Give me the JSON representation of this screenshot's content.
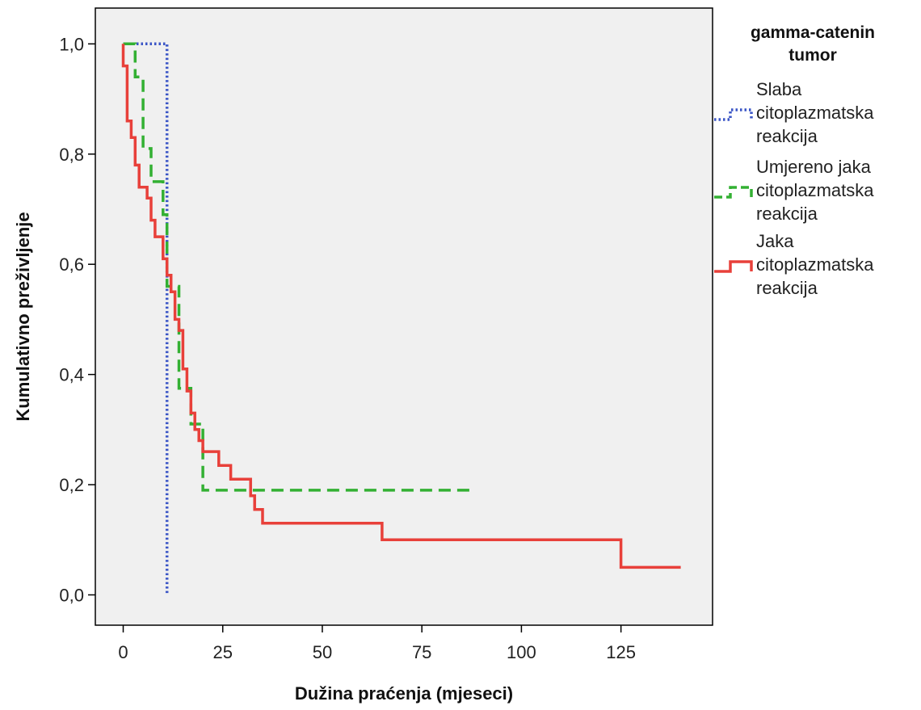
{
  "chart_data": {
    "type": "line",
    "step": true,
    "xlabel": "Dužina praćenja (mjeseci)",
    "ylabel": "Kumulativno preživljenje",
    "xlim": [
      -7,
      148
    ],
    "ylim": [
      -0.055,
      1.065
    ],
    "x_ticks": [
      0,
      25,
      50,
      75,
      100,
      125
    ],
    "x_tick_labels": [
      "0",
      "25",
      "50",
      "75",
      "100",
      "125"
    ],
    "y_ticks": [
      0.0,
      0.2,
      0.4,
      0.6,
      0.8,
      1.0
    ],
    "y_tick_labels": [
      "0,0",
      "0,2",
      "0,4",
      "0,6",
      "0,8",
      "1,0"
    ],
    "plot_background": "#f0f0f0",
    "grid": false,
    "legend": {
      "title_lines": [
        "gamma-catenin",
        "tumor"
      ],
      "position": "right"
    },
    "series": [
      {
        "label_lines": [
          "Slaba",
          "citoplazmatska",
          "reakcija"
        ],
        "color": "#3a55c6",
        "dash": "dotted",
        "points": [
          [
            0,
            1.0
          ],
          [
            11,
            1.0
          ],
          [
            11,
            0.0
          ]
        ]
      },
      {
        "label_lines": [
          "Umjereno jaka",
          "citoplazmatska",
          "reakcija"
        ],
        "color": "#33b033",
        "dash": "dashed",
        "points": [
          [
            0,
            1.0
          ],
          [
            3,
            1.0
          ],
          [
            3,
            0.94
          ],
          [
            5,
            0.94
          ],
          [
            5,
            0.81
          ],
          [
            7,
            0.81
          ],
          [
            7,
            0.75
          ],
          [
            10,
            0.75
          ],
          [
            10,
            0.69
          ],
          [
            11,
            0.69
          ],
          [
            11,
            0.56
          ],
          [
            14,
            0.56
          ],
          [
            14,
            0.375
          ],
          [
            17,
            0.375
          ],
          [
            17,
            0.31
          ],
          [
            20,
            0.31
          ],
          [
            20,
            0.19
          ],
          [
            88,
            0.19
          ]
        ]
      },
      {
        "label_lines": [
          "Jaka",
          "citoplazmatska",
          "reakcija"
        ],
        "color": "#e8403a",
        "dash": "solid",
        "points": [
          [
            0,
            1.0
          ],
          [
            0,
            0.96
          ],
          [
            1,
            0.96
          ],
          [
            1,
            0.86
          ],
          [
            2,
            0.86
          ],
          [
            2,
            0.83
          ],
          [
            3,
            0.83
          ],
          [
            3,
            0.78
          ],
          [
            4,
            0.78
          ],
          [
            4,
            0.74
          ],
          [
            6,
            0.74
          ],
          [
            6,
            0.72
          ],
          [
            7,
            0.72
          ],
          [
            7,
            0.68
          ],
          [
            8,
            0.68
          ],
          [
            8,
            0.65
          ],
          [
            10,
            0.65
          ],
          [
            10,
            0.61
          ],
          [
            11,
            0.61
          ],
          [
            11,
            0.58
          ],
          [
            12,
            0.58
          ],
          [
            12,
            0.55
          ],
          [
            13,
            0.55
          ],
          [
            13,
            0.5
          ],
          [
            14,
            0.5
          ],
          [
            14,
            0.48
          ],
          [
            15,
            0.48
          ],
          [
            15,
            0.41
          ],
          [
            16,
            0.41
          ],
          [
            16,
            0.37
          ],
          [
            17,
            0.37
          ],
          [
            17,
            0.33
          ],
          [
            18,
            0.33
          ],
          [
            18,
            0.3
          ],
          [
            19,
            0.3
          ],
          [
            19,
            0.28
          ],
          [
            20,
            0.28
          ],
          [
            20,
            0.26
          ],
          [
            24,
            0.26
          ],
          [
            24,
            0.235
          ],
          [
            27,
            0.235
          ],
          [
            27,
            0.21
          ],
          [
            32,
            0.21
          ],
          [
            32,
            0.18
          ],
          [
            33,
            0.18
          ],
          [
            33,
            0.155
          ],
          [
            35,
            0.155
          ],
          [
            35,
            0.13
          ],
          [
            65,
            0.13
          ],
          [
            65,
            0.1
          ],
          [
            125,
            0.1
          ],
          [
            125,
            0.05
          ],
          [
            140,
            0.05
          ]
        ]
      }
    ]
  }
}
